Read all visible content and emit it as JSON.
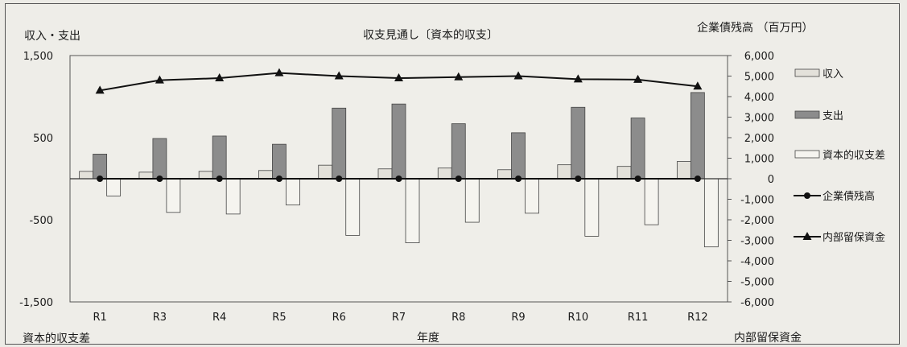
{
  "chart_data": {
    "type": "bar",
    "title": "収支見通し〔資本的収支〕",
    "left_axis_label": "収入・支出",
    "right_axis_label": "企業債残高 （百万円）",
    "left_axis_bottom_label": "資本的収支差",
    "xlabel": "年度",
    "right_axis_bottom_label": "内部留保資金",
    "categories": [
      "R1",
      "R3",
      "R4",
      "R5",
      "R6",
      "R7",
      "R8",
      "R9",
      "R10",
      "R11",
      "R12"
    ],
    "left_ylim": [
      -1500,
      1500
    ],
    "left_ticks": [
      "1,500",
      "500",
      "-500",
      "-1,500"
    ],
    "right_ylim": [
      -6000,
      6000
    ],
    "right_ticks": [
      "6,000",
      "5,000",
      "4,000",
      "3,000",
      "2,000",
      "1,000",
      "0",
      "-1,000",
      "-2,000",
      "-3,000",
      "-4,000",
      "-5,000",
      "-6,000"
    ],
    "series": [
      {
        "name": "収入",
        "kind": "bar",
        "axis": "left",
        "color": "#e3e1da",
        "values": [
          90,
          80,
          90,
          100,
          165,
          120,
          130,
          110,
          170,
          150,
          210
        ]
      },
      {
        "name": "支出",
        "kind": "bar",
        "axis": "left",
        "color": "#8c8c8c",
        "values": [
          300,
          490,
          520,
          420,
          860,
          910,
          670,
          560,
          870,
          740,
          1050
        ]
      },
      {
        "name": "資本的収支差",
        "kind": "bar",
        "axis": "left",
        "color": "#f5f4ef",
        "values": [
          -210,
          -410,
          -430,
          -320,
          -690,
          -780,
          -530,
          -420,
          -700,
          -560,
          -830
        ]
      },
      {
        "name": "企業債残高",
        "kind": "line",
        "axis": "right",
        "marker": "circle",
        "color": "#111111",
        "values": [
          0,
          0,
          0,
          0,
          0,
          0,
          0,
          0,
          0,
          0,
          0
        ]
      },
      {
        "name": "内部留保資金",
        "kind": "line",
        "axis": "right",
        "marker": "triangle",
        "color": "#111111",
        "values": [
          4300,
          4800,
          4900,
          5150,
          5000,
          4900,
          4950,
          5000,
          4850,
          4830,
          4500
        ]
      }
    ],
    "legend": "right",
    "grid": false
  }
}
